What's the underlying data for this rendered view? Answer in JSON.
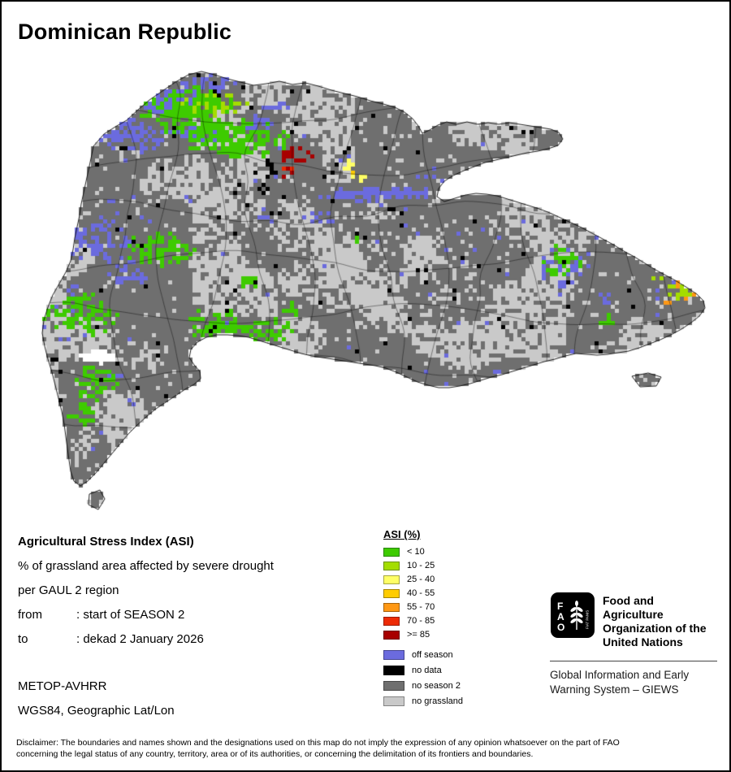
{
  "title": "Dominican Republic",
  "info": {
    "heading": "Agricultural Stress Index (ASI)",
    "line1": "% of grassland area affected by severe drought",
    "line2": "per GAUL 2 region",
    "from_label": "from",
    "from_value": ": start of SEASON 2",
    "to_label": "to",
    "to_value": ": dekad 2 January 2026",
    "sensor": "METOP-AVHRR",
    "projection": "WGS84, Geographic Lat/Lon"
  },
  "legend": {
    "title": "ASI (%)",
    "classes": [
      {
        "label": "< 10",
        "color": "#3ecb00"
      },
      {
        "label": "10 - 25",
        "color": "#a4dd00"
      },
      {
        "label": "25 - 40",
        "color": "#ffff66"
      },
      {
        "label": "40 - 55",
        "color": "#ffcc00"
      },
      {
        "label": "55 - 70",
        "color": "#ff9814"
      },
      {
        "label": "70 - 85",
        "color": "#ed2b06"
      },
      {
        "label": ">= 85",
        "color": "#a80000"
      }
    ],
    "extra": [
      {
        "label": "off season",
        "color": "#6b6bde"
      },
      {
        "label": "no data",
        "color": "#000000"
      },
      {
        "label": "no season 2",
        "color": "#6f6f6f"
      },
      {
        "label": "no grassland",
        "color": "#c9c9c9"
      }
    ]
  },
  "fao": {
    "logo_letters": [
      "F",
      "A",
      "O"
    ],
    "fiat_panis": "FIAT PANIS",
    "name_lines": [
      "Food and Agriculture",
      "Organization of the",
      "United Nations"
    ],
    "giews_lines": [
      "Global Information and Early",
      "Warning System – GIEWS"
    ]
  },
  "disclaimer": "Disclaimer: The boundaries and names shown and the designations used on this map do not imply the expression of any opinion whatsoever on the part of FAO concerning the legal status of any country, territory, area or of its authorities, or concerning the delimitation of its frontiers and boundaries."
}
